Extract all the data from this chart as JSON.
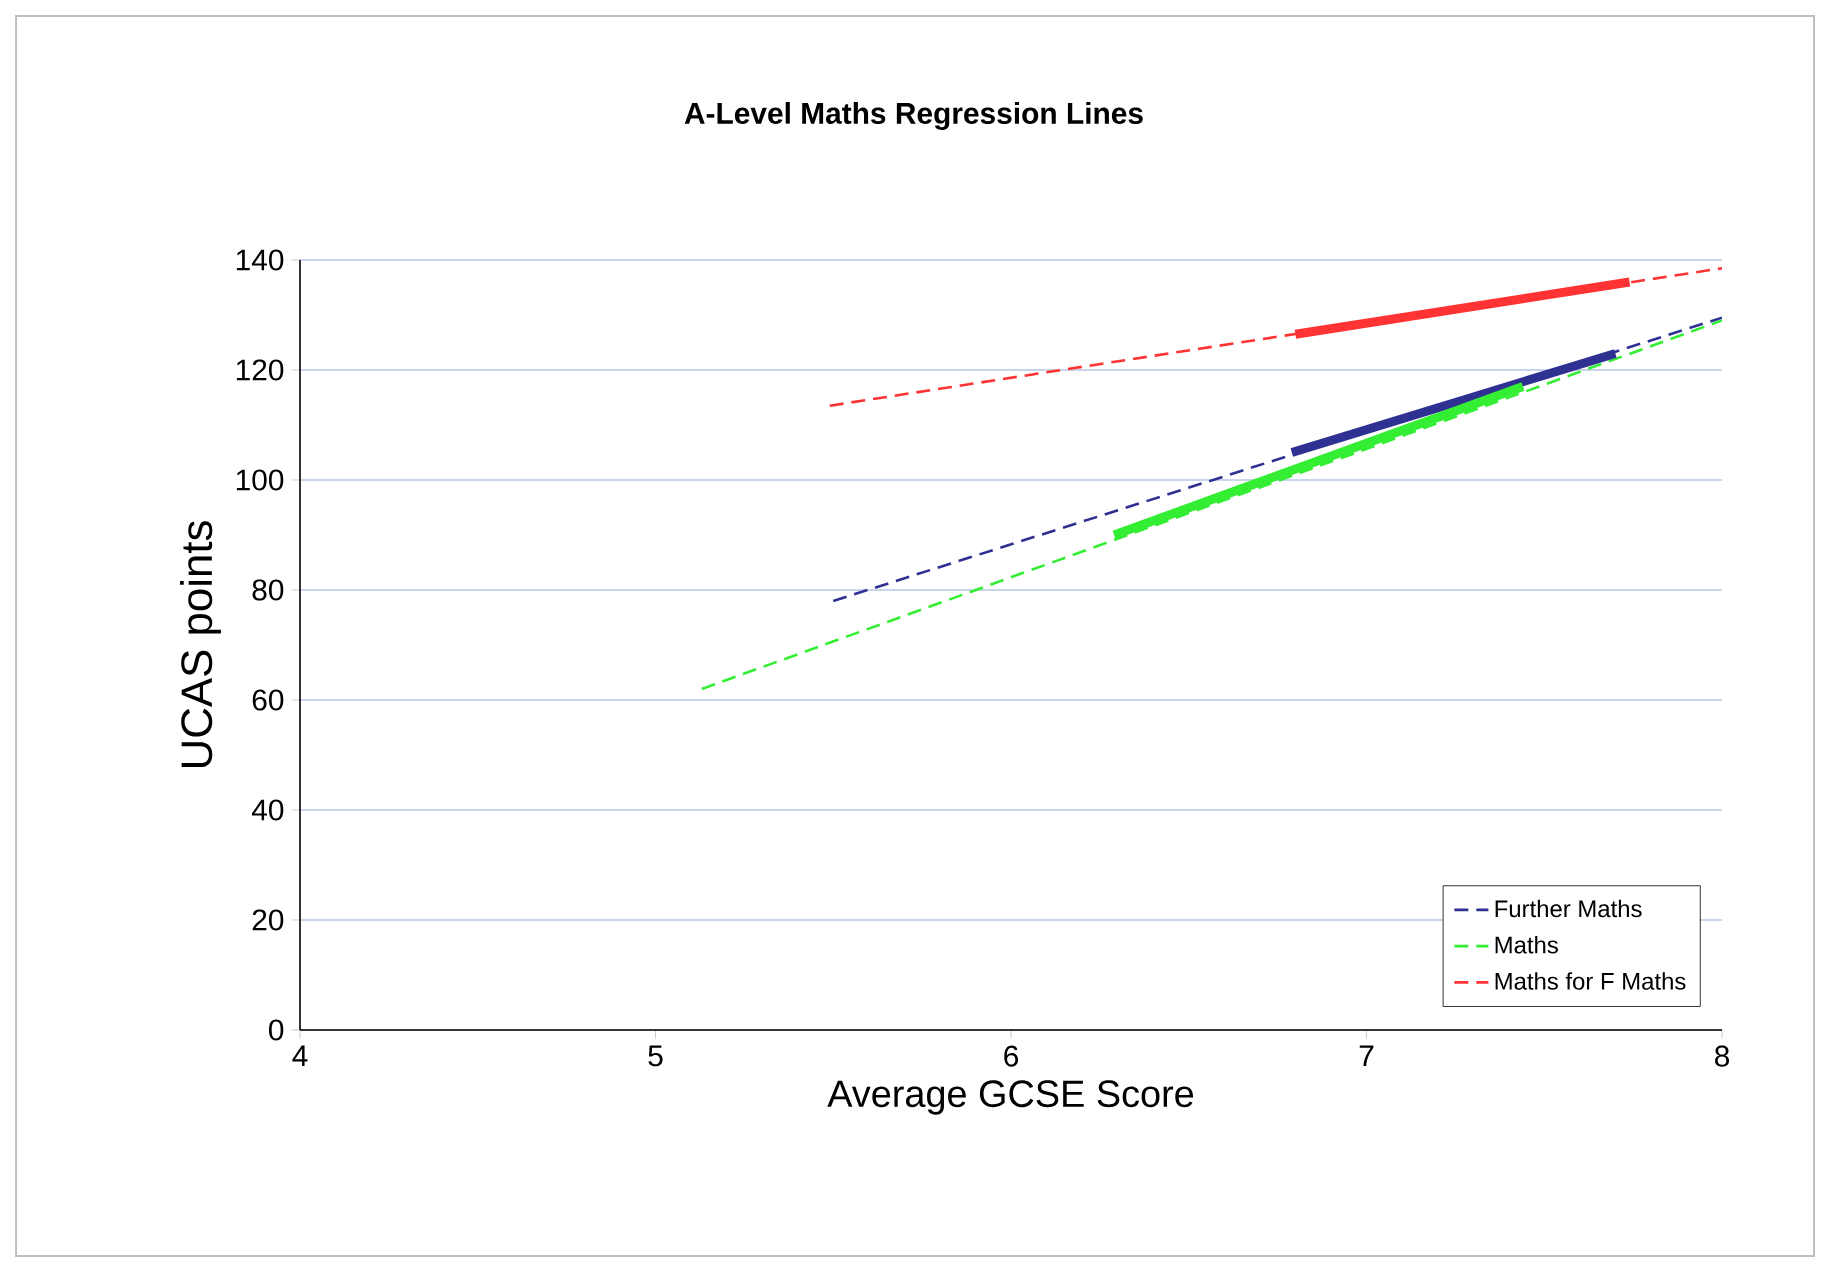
{
  "chart_data": {
    "type": "line",
    "title": "A-Level Maths Regression Lines",
    "xlabel": "Average GCSE Score",
    "ylabel": "UCAS points",
    "xlim": [
      4,
      8
    ],
    "xticks": [
      4,
      5,
      6,
      7,
      8
    ],
    "ylim": [
      0,
      140
    ],
    "yticks": [
      0,
      20,
      40,
      60,
      80,
      100,
      120,
      140
    ],
    "grid": "y",
    "legend": "bottom right",
    "marker": "none",
    "series": [
      {
        "name": "Further Maths",
        "color": "#2e3192",
        "line_style": "dashed",
        "x": [
          5.5,
          8
        ],
        "values": [
          78,
          129.5
        ]
      },
      {
        "name": "Maths",
        "color": "#33ee33",
        "line_style": "dashed",
        "x": [
          5.13,
          8
        ],
        "values": [
          62,
          129
        ]
      },
      {
        "name": "Maths for F Maths",
        "color": "#ff3333",
        "line_style": "dashed",
        "x": [
          5.49,
          8
        ],
        "values": [
          113.5,
          138.5
        ]
      },
      {
        "color": "#2e3192",
        "line_style": "solid",
        "x": [
          6.79,
          7.7
        ],
        "values": [
          105,
          123
        ]
      },
      {
        "color": "#33ee33",
        "line_style": "solid",
        "x": [
          6.29,
          7.44
        ],
        "values": [
          90,
          117
        ]
      },
      {
        "color": "#ff3333",
        "line_style": "solid",
        "x": [
          6.8,
          7.74
        ],
        "values": [
          126.5,
          136
        ]
      }
    ]
  }
}
